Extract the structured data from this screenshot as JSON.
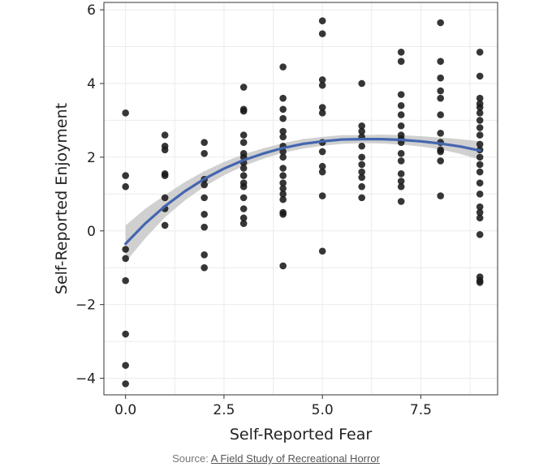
{
  "chart_data": {
    "type": "scatter",
    "title": "",
    "xlabel": "Self-Reported Fear",
    "ylabel": "Self-Reported Enjoyment",
    "xlim": [
      -0.55,
      9.45
    ],
    "ylim": [
      -4.45,
      6.2
    ],
    "xticks": [
      0.0,
      2.5,
      5.0,
      7.5
    ],
    "xtick_labels": [
      "0.0",
      "2.5",
      "5.0",
      "7.5"
    ],
    "yticks": [
      -4,
      -2,
      0,
      2,
      4,
      6
    ],
    "ytick_labels": [
      "−4",
      "−2",
      "0",
      "2",
      "4",
      "6"
    ],
    "grid": true,
    "colors": {
      "points": "#1a1a1a",
      "fit_line": "#4466b0",
      "confidence_band": "#c8c8c8"
    },
    "points": [
      [
        0,
        3.2
      ],
      [
        0,
        1.5
      ],
      [
        0,
        1.2
      ],
      [
        0,
        -0.5
      ],
      [
        0,
        -0.75
      ],
      [
        0,
        -1.35
      ],
      [
        0,
        -2.8
      ],
      [
        0,
        -3.65
      ],
      [
        0,
        -4.15
      ],
      [
        1,
        2.6
      ],
      [
        1,
        2.3
      ],
      [
        1,
        2.2
      ],
      [
        1,
        1.55
      ],
      [
        1,
        1.5
      ],
      [
        1,
        0.9
      ],
      [
        1,
        0.6
      ],
      [
        1,
        0.15
      ],
      [
        2,
        2.4
      ],
      [
        2,
        2.1
      ],
      [
        2,
        1.4
      ],
      [
        2,
        1.25
      ],
      [
        2,
        0.9
      ],
      [
        2,
        0.45
      ],
      [
        2,
        0.1
      ],
      [
        2,
        -0.65
      ],
      [
        2,
        -1.0
      ],
      [
        3,
        3.9
      ],
      [
        3,
        3.3
      ],
      [
        3,
        3.25
      ],
      [
        3,
        2.6
      ],
      [
        3,
        2.4
      ],
      [
        3,
        2.1
      ],
      [
        3,
        2.0
      ],
      [
        3,
        1.85
      ],
      [
        3,
        1.7
      ],
      [
        3,
        1.5
      ],
      [
        3,
        1.3
      ],
      [
        3,
        1.2
      ],
      [
        3,
        0.9
      ],
      [
        3,
        0.6
      ],
      [
        3,
        0.35
      ],
      [
        3,
        0.2
      ],
      [
        4,
        4.45
      ],
      [
        4,
        3.6
      ],
      [
        4,
        3.3
      ],
      [
        4,
        3.05
      ],
      [
        4,
        2.7
      ],
      [
        4,
        2.55
      ],
      [
        4,
        2.3
      ],
      [
        4,
        2.15
      ],
      [
        4,
        2.0
      ],
      [
        4,
        1.7
      ],
      [
        4,
        1.5
      ],
      [
        4,
        1.3
      ],
      [
        4,
        1.15
      ],
      [
        4,
        1.0
      ],
      [
        4,
        0.85
      ],
      [
        4,
        0.5
      ],
      [
        4,
        0.45
      ],
      [
        4,
        -0.95
      ],
      [
        5,
        5.7
      ],
      [
        5,
        5.35
      ],
      [
        5,
        4.1
      ],
      [
        5,
        3.95
      ],
      [
        5,
        3.35
      ],
      [
        5,
        3.2
      ],
      [
        5,
        2.4
      ],
      [
        5,
        2.15
      ],
      [
        5,
        1.75
      ],
      [
        5,
        1.6
      ],
      [
        5,
        0.95
      ],
      [
        5,
        -0.55
      ],
      [
        6,
        4.0
      ],
      [
        6,
        2.85
      ],
      [
        6,
        2.7
      ],
      [
        6,
        2.55
      ],
      [
        6,
        2.3
      ],
      [
        6,
        2.0
      ],
      [
        6,
        1.8
      ],
      [
        6,
        1.6
      ],
      [
        6,
        1.45
      ],
      [
        6,
        1.2
      ],
      [
        6,
        0.9
      ],
      [
        7,
        4.85
      ],
      [
        7,
        4.6
      ],
      [
        7,
        3.7
      ],
      [
        7,
        3.4
      ],
      [
        7,
        3.15
      ],
      [
        7,
        2.85
      ],
      [
        7,
        2.6
      ],
      [
        7,
        2.5
      ],
      [
        7,
        2.4
      ],
      [
        7,
        2.1
      ],
      [
        7,
        1.9
      ],
      [
        7,
        1.55
      ],
      [
        7,
        1.35
      ],
      [
        7,
        1.2
      ],
      [
        7,
        0.8
      ],
      [
        8,
        5.65
      ],
      [
        8,
        4.6
      ],
      [
        8,
        4.15
      ],
      [
        8,
        3.8
      ],
      [
        8,
        3.6
      ],
      [
        8,
        3.15
      ],
      [
        8,
        2.65
      ],
      [
        8,
        2.4
      ],
      [
        8,
        2.2
      ],
      [
        8,
        2.15
      ],
      [
        8,
        1.9
      ],
      [
        8,
        0.95
      ],
      [
        9,
        4.85
      ],
      [
        9,
        4.2
      ],
      [
        9,
        3.6
      ],
      [
        9,
        3.45
      ],
      [
        9,
        3.35
      ],
      [
        9,
        3.2
      ],
      [
        9,
        3.0
      ],
      [
        9,
        2.8
      ],
      [
        9,
        2.6
      ],
      [
        9,
        2.35
      ],
      [
        9,
        2.2
      ],
      [
        9,
        2.0
      ],
      [
        9,
        1.8
      ],
      [
        9,
        1.6
      ],
      [
        9,
        1.3
      ],
      [
        9,
        1.0
      ],
      [
        9,
        0.65
      ],
      [
        9,
        0.5
      ],
      [
        9,
        0.35
      ],
      [
        9,
        -0.1
      ],
      [
        9,
        -1.25
      ],
      [
        9,
        -1.35
      ],
      [
        9,
        -1.4
      ]
    ],
    "fit": {
      "x": [
        0,
        0.5,
        1,
        1.5,
        2,
        2.5,
        3,
        3.5,
        4,
        4.5,
        5,
        5.5,
        6,
        6.5,
        7,
        7.5,
        8,
        8.5,
        9
      ],
      "y": [
        -0.35,
        0.2,
        0.67,
        1.07,
        1.41,
        1.69,
        1.92,
        2.1,
        2.25,
        2.36,
        2.43,
        2.48,
        2.49,
        2.49,
        2.47,
        2.43,
        2.37,
        2.29,
        2.18
      ],
      "lower": [
        -0.85,
        -0.2,
        0.37,
        0.82,
        1.2,
        1.51,
        1.76,
        1.96,
        2.12,
        2.23,
        2.31,
        2.36,
        2.38,
        2.37,
        2.34,
        2.29,
        2.21,
        2.09,
        1.93
      ],
      "upper": [
        0.15,
        0.6,
        0.97,
        1.32,
        1.62,
        1.87,
        2.08,
        2.24,
        2.38,
        2.49,
        2.55,
        2.6,
        2.6,
        2.61,
        2.6,
        2.57,
        2.53,
        2.49,
        2.43
      ]
    }
  },
  "source": {
    "prefix": "Source: ",
    "link_text": "A Field Study of Recreational Horror"
  }
}
